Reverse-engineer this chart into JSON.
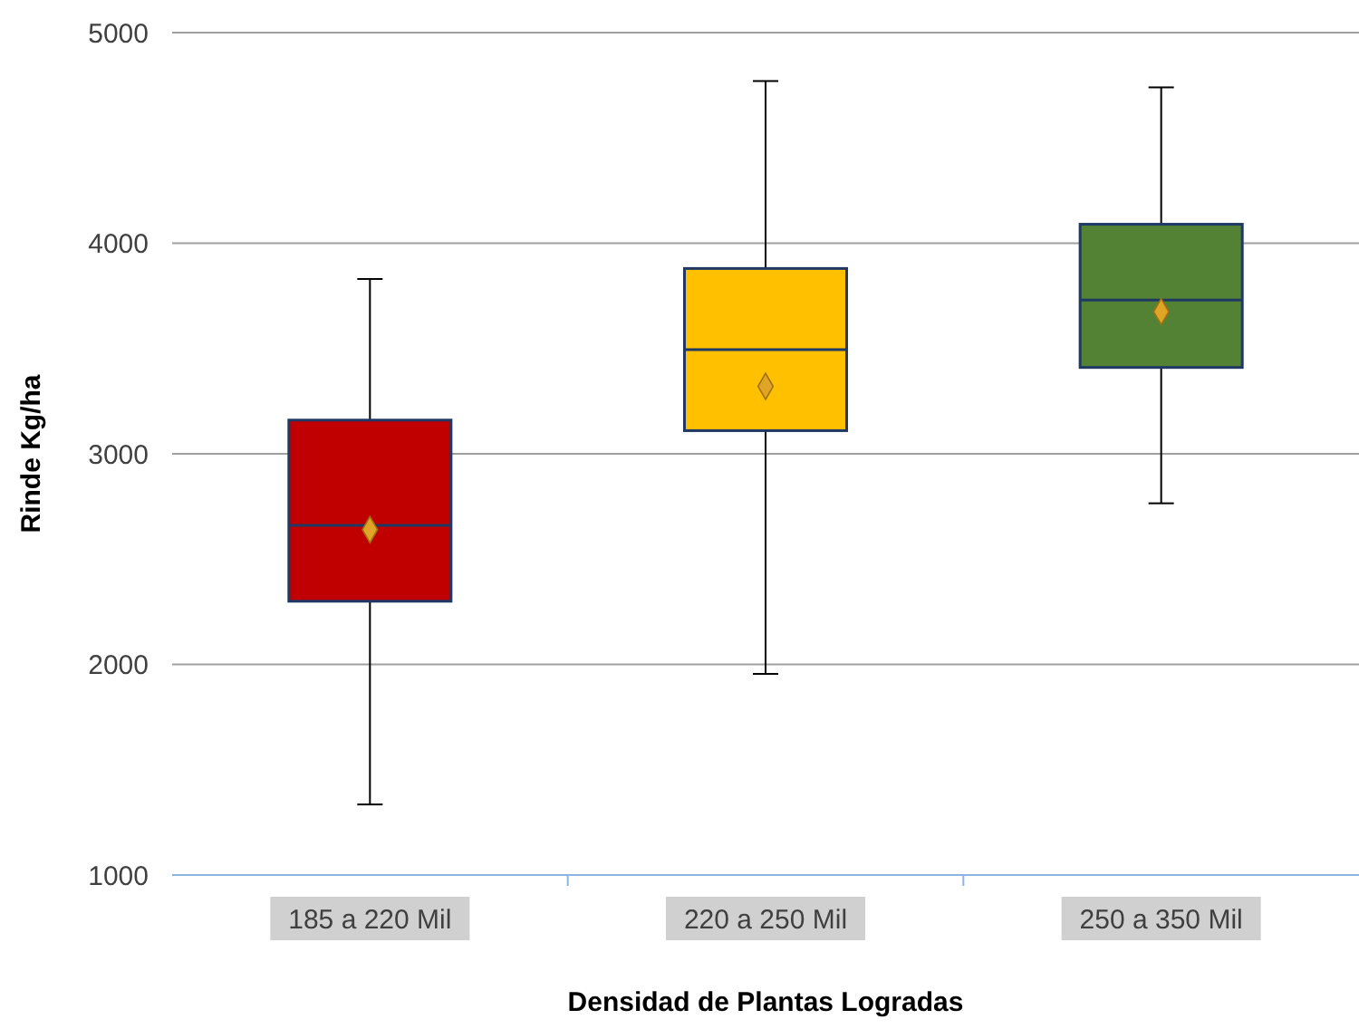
{
  "chart_data": {
    "type": "box",
    "xlabel": "Densidad de Plantas Logradas",
    "ylabel": "Rinde Kg/ha",
    "categories": [
      "185 a 220 Mil",
      "220 a 250 Mil",
      "250 a 350 Mil"
    ],
    "colors": [
      "#c00000",
      "#ffc000",
      "#548235"
    ],
    "boxes": [
      {
        "low": 1335,
        "q1": 2300,
        "median": 2660,
        "q3": 3160,
        "high": 3830,
        "mean": 2640
      },
      {
        "low": 1955,
        "q1": 3110,
        "median": 3495,
        "q3": 3880,
        "high": 4770,
        "mean": 3320
      },
      {
        "low": 2765,
        "q1": 3410,
        "median": 3730,
        "q3": 4090,
        "high": 4740,
        "mean": 3675
      }
    ],
    "ylim": [
      1000,
      5000
    ],
    "yticks": [
      1000,
      2000,
      3000,
      4000,
      5000
    ],
    "grid": "y",
    "marker": "diamond"
  }
}
